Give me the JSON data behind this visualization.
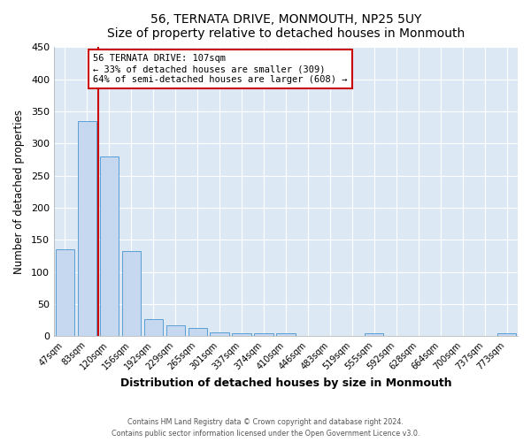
{
  "title": "56, TERNATA DRIVE, MONMOUTH, NP25 5UY",
  "subtitle": "Size of property relative to detached houses in Monmouth",
  "xlabel": "Distribution of detached houses by size in Monmouth",
  "ylabel": "Number of detached properties",
  "bar_labels": [
    "47sqm",
    "83sqm",
    "120sqm",
    "156sqm",
    "192sqm",
    "229sqm",
    "265sqm",
    "301sqm",
    "337sqm",
    "374sqm",
    "410sqm",
    "446sqm",
    "483sqm",
    "519sqm",
    "555sqm",
    "592sqm",
    "628sqm",
    "664sqm",
    "700sqm",
    "737sqm",
    "773sqm"
  ],
  "bar_values": [
    135,
    335,
    280,
    133,
    27,
    17,
    12,
    6,
    5,
    5,
    4,
    0,
    0,
    0,
    4,
    0,
    0,
    0,
    0,
    0,
    4
  ],
  "bar_color": "#c5d8f0",
  "bar_edge_color": "#5a9fd4",
  "ylim": [
    0,
    450
  ],
  "yticks": [
    0,
    50,
    100,
    150,
    200,
    250,
    300,
    350,
    400,
    450
  ],
  "vline_color": "#cc0000",
  "annotation_title": "56 TERNATA DRIVE: 107sqm",
  "annotation_line1": "← 33% of detached houses are smaller (309)",
  "annotation_line2": "64% of semi-detached houses are larger (608) →",
  "annotation_box_color": "#cc0000",
  "plot_bg_color": "#dce9f5",
  "fig_bg_color": "#ffffff",
  "grid_color": "#ffffff",
  "footer_line1": "Contains HM Land Registry data © Crown copyright and database right 2024.",
  "footer_line2": "Contains public sector information licensed under the Open Government Licence v3.0."
}
